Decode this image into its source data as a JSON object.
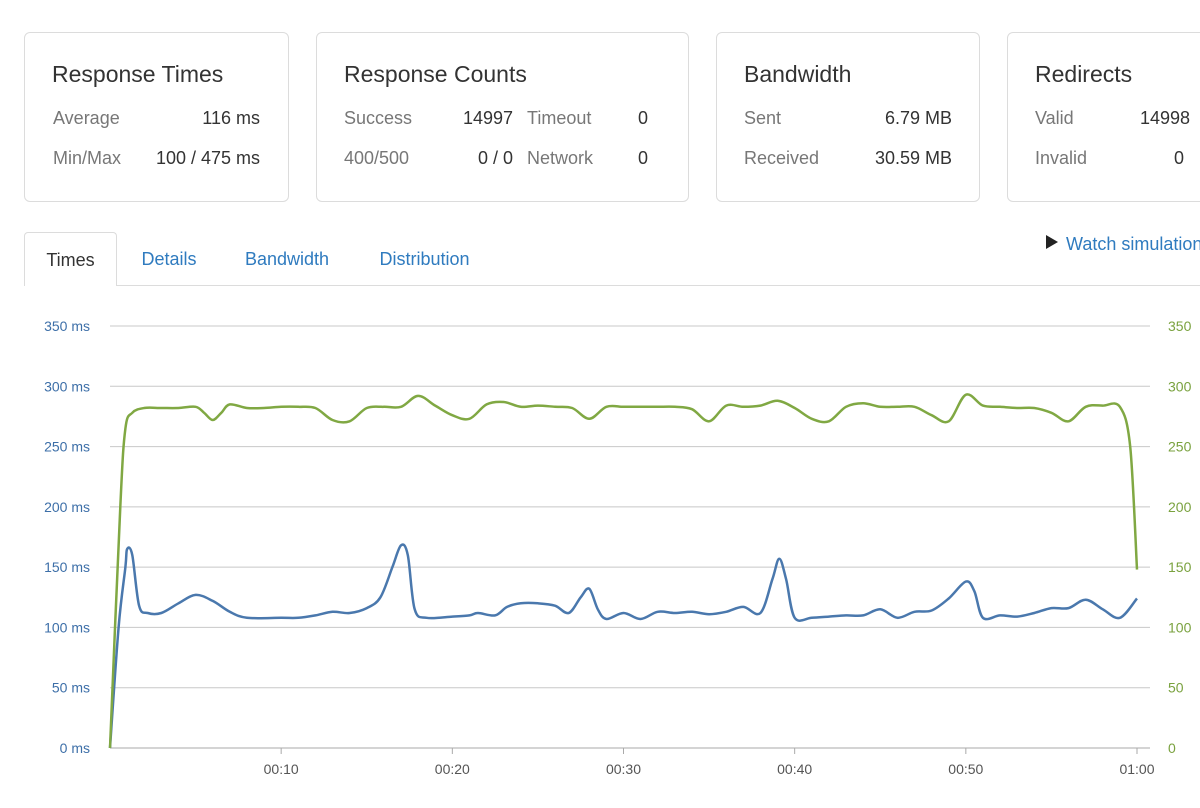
{
  "cards": {
    "response_times": {
      "title": "Response Times",
      "average_label": "Average",
      "average_value": "116 ms",
      "minmax_label": "Min/Max",
      "minmax_value": "100 / 475 ms"
    },
    "response_counts": {
      "title": "Response Counts",
      "success_label": "Success",
      "success_value": "14997",
      "timeout_label": "Timeout",
      "timeout_value": "0",
      "err_label": "400/500",
      "err_value": "0 / 0",
      "network_label": "Network",
      "network_value": "0"
    },
    "bandwidth": {
      "title": "Bandwidth",
      "sent_label": "Sent",
      "sent_value": "6.79 MB",
      "received_label": "Received",
      "received_value": "30.59 MB"
    },
    "redirects": {
      "title": "Redirects",
      "valid_label": "Valid",
      "valid_value": "14998",
      "invalid_label": "Invalid",
      "invalid_value": "0"
    }
  },
  "tabs": [
    "Times",
    "Details",
    "Bandwidth",
    "Distribution"
  ],
  "active_tab": "Times",
  "watch_label": "Watch simulation",
  "chart_data": {
    "type": "line",
    "left_ticks": [
      "0 ms",
      "50 ms",
      "100 ms",
      "150 ms",
      "200 ms",
      "250 ms",
      "300 ms",
      "350 ms"
    ],
    "right_ticks": [
      "0",
      "50",
      "100",
      "150",
      "200",
      "250",
      "300",
      "350"
    ],
    "x_ticks": [
      {
        "t": 10,
        "label": "00:10"
      },
      {
        "t": 20,
        "label": "00:20"
      },
      {
        "t": 30,
        "label": "00:30"
      },
      {
        "t": 40,
        "label": "00:40"
      },
      {
        "t": 50,
        "label": "00:50"
      },
      {
        "t": 60,
        "label": "01:00"
      }
    ],
    "xlim": [
      0,
      60
    ],
    "ylim": [
      0,
      350
    ],
    "grid": true,
    "left_axis_color": "#3d6fa8",
    "right_axis_color": "#7aa23f",
    "series": [
      {
        "color": "#4a78ad",
        "points": [
          [
            0,
            0
          ],
          [
            0.5,
            100
          ],
          [
            0.9,
            150
          ],
          [
            1,
            165
          ],
          [
            1.3,
            160
          ],
          [
            1.7,
            118
          ],
          [
            2.2,
            112
          ],
          [
            3,
            112
          ],
          [
            4,
            120
          ],
          [
            5,
            127
          ],
          [
            6,
            122
          ],
          [
            7,
            113
          ],
          [
            8,
            108
          ],
          [
            10,
            108
          ],
          [
            11,
            108
          ],
          [
            12,
            110
          ],
          [
            13,
            113
          ],
          [
            14,
            112
          ],
          [
            15,
            116
          ],
          [
            15.8,
            125
          ],
          [
            16.5,
            150
          ],
          [
            17,
            168
          ],
          [
            17.4,
            160
          ],
          [
            17.8,
            115
          ],
          [
            18.5,
            108
          ],
          [
            20,
            109
          ],
          [
            21,
            110
          ],
          [
            21.5,
            112
          ],
          [
            22.5,
            110
          ],
          [
            23.2,
            117
          ],
          [
            24,
            120
          ],
          [
            25,
            120
          ],
          [
            26,
            118
          ],
          [
            26.8,
            112
          ],
          [
            27.5,
            125
          ],
          [
            28,
            132
          ],
          [
            28.5,
            115
          ],
          [
            29,
            107
          ],
          [
            30,
            112
          ],
          [
            31,
            107
          ],
          [
            32,
            113
          ],
          [
            33,
            112
          ],
          [
            34,
            113
          ],
          [
            35,
            111
          ],
          [
            36,
            113
          ],
          [
            37,
            117
          ],
          [
            38,
            112
          ],
          [
            38.7,
            140
          ],
          [
            39.1,
            157
          ],
          [
            39.5,
            140
          ],
          [
            40,
            108
          ],
          [
            41,
            108
          ],
          [
            42,
            109
          ],
          [
            43,
            110
          ],
          [
            44,
            110
          ],
          [
            45,
            115
          ],
          [
            46,
            108
          ],
          [
            47,
            113
          ],
          [
            48,
            114
          ],
          [
            49,
            124
          ],
          [
            50,
            138
          ],
          [
            50.5,
            130
          ],
          [
            51,
            108
          ],
          [
            52,
            110
          ],
          [
            53,
            109
          ],
          [
            54,
            112
          ],
          [
            55,
            116
          ],
          [
            56,
            116
          ],
          [
            57,
            123
          ],
          [
            58,
            115
          ],
          [
            59,
            108
          ],
          [
            60,
            124
          ]
        ]
      },
      {
        "color": "#80a843",
        "points": [
          [
            0,
            0
          ],
          [
            0.6,
            200
          ],
          [
            0.9,
            265
          ],
          [
            1.3,
            278
          ],
          [
            2,
            282
          ],
          [
            3,
            282
          ],
          [
            4,
            282
          ],
          [
            5,
            283
          ],
          [
            5.5,
            278
          ],
          [
            6,
            272
          ],
          [
            6.5,
            278
          ],
          [
            7,
            285
          ],
          [
            8,
            282
          ],
          [
            9,
            282
          ],
          [
            10,
            283
          ],
          [
            11,
            283
          ],
          [
            12,
            282
          ],
          [
            13,
            272
          ],
          [
            14,
            271
          ],
          [
            15,
            282
          ],
          [
            16,
            283
          ],
          [
            17,
            283
          ],
          [
            18,
            292
          ],
          [
            19,
            284
          ],
          [
            20,
            276
          ],
          [
            21,
            273
          ],
          [
            22,
            285
          ],
          [
            23,
            287
          ],
          [
            24,
            283
          ],
          [
            25,
            284
          ],
          [
            26,
            283
          ],
          [
            27,
            282
          ],
          [
            28,
            273
          ],
          [
            29,
            283
          ],
          [
            30,
            283
          ],
          [
            31,
            283
          ],
          [
            32,
            283
          ],
          [
            33,
            283
          ],
          [
            34,
            281
          ],
          [
            35,
            271
          ],
          [
            36,
            284
          ],
          [
            37,
            283
          ],
          [
            38,
            284
          ],
          [
            39,
            288
          ],
          [
            40,
            282
          ],
          [
            41,
            273
          ],
          [
            42,
            271
          ],
          [
            43,
            283
          ],
          [
            44,
            286
          ],
          [
            45,
            283
          ],
          [
            46,
            283
          ],
          [
            47,
            283
          ],
          [
            48,
            276
          ],
          [
            49,
            271
          ],
          [
            50,
            293
          ],
          [
            51,
            284
          ],
          [
            52,
            283
          ],
          [
            53,
            282
          ],
          [
            54,
            282
          ],
          [
            55,
            278
          ],
          [
            56,
            271
          ],
          [
            57,
            283
          ],
          [
            58,
            284
          ],
          [
            59,
            283
          ],
          [
            59.6,
            250
          ],
          [
            60,
            148
          ]
        ]
      }
    ]
  }
}
